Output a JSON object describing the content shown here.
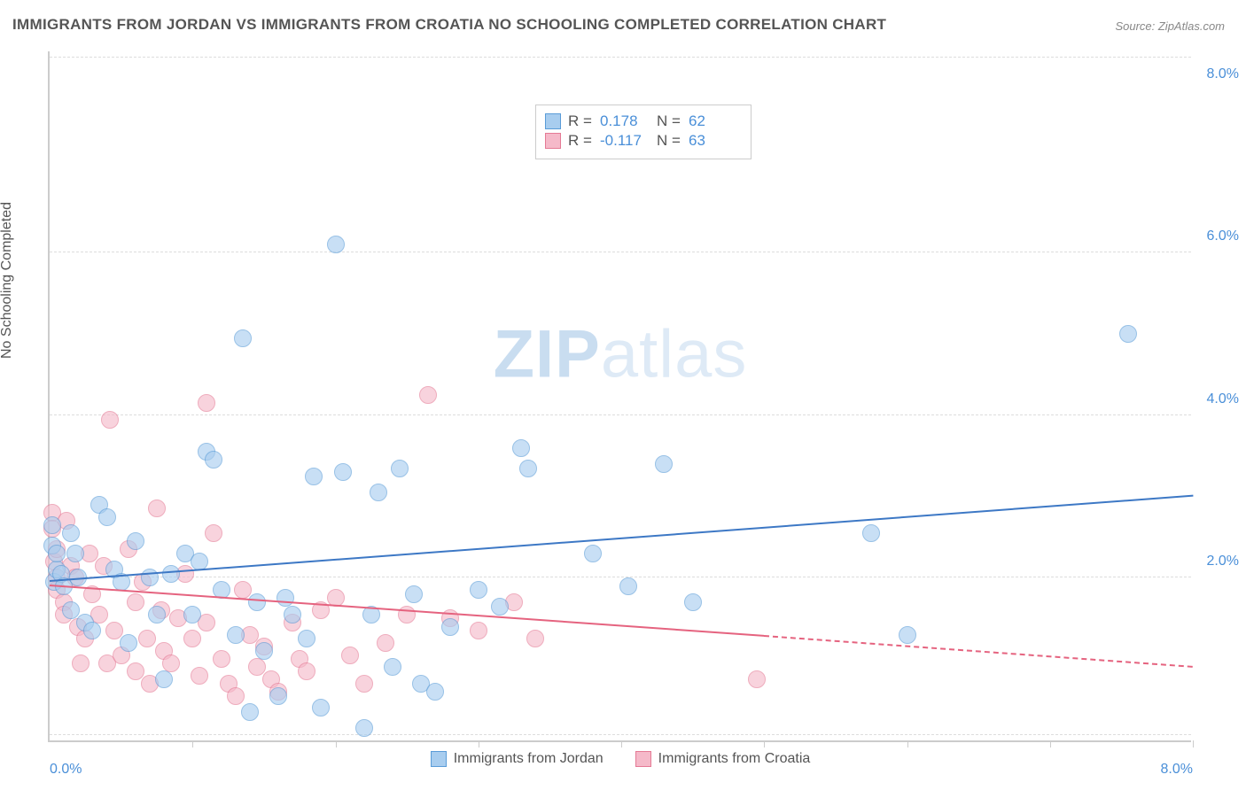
{
  "title": "IMMIGRANTS FROM JORDAN VS IMMIGRANTS FROM CROATIA NO SCHOOLING COMPLETED CORRELATION CHART",
  "source": "Source: ZipAtlas.com",
  "ylabel": "No Schooling Completed",
  "watermark_bold": "ZIP",
  "watermark_rest": "atlas",
  "axis": {
    "xlim": [
      0,
      8
    ],
    "ylim": [
      0,
      8.5
    ],
    "xlabel_left": "0.0%",
    "xlabel_right": "8.0%",
    "yticks": [
      {
        "v": 2.0,
        "label": "2.0%"
      },
      {
        "v": 4.0,
        "label": "4.0%"
      },
      {
        "v": 6.0,
        "label": "6.0%"
      },
      {
        "v": 8.0,
        "label": "8.0%"
      }
    ],
    "grid_y": [
      0.07,
      2.0,
      4.0,
      6.0,
      8.4
    ],
    "xticks": [
      1.0,
      2.0,
      3.0,
      4.0,
      5.0,
      6.0,
      7.0,
      8.0
    ],
    "grid_color": "#dddddd",
    "tick_label_color": "#4a8fd8"
  },
  "series": {
    "jordan": {
      "label": "Immigrants from Jordan",
      "fill": "#a8cdef",
      "stroke": "#5a9cd8",
      "line_color": "#3d78c5",
      "opacity": 0.62,
      "r": 0.178,
      "n": 62,
      "trend": {
        "x0": 0.0,
        "y0": 1.95,
        "x1": 8.0,
        "y1": 3.0
      },
      "points": [
        [
          0.02,
          2.65
        ],
        [
          0.02,
          2.4
        ],
        [
          0.03,
          1.95
        ],
        [
          0.05,
          2.1
        ],
        [
          0.05,
          2.3
        ],
        [
          0.08,
          2.05
        ],
        [
          0.1,
          1.9
        ],
        [
          0.15,
          1.6
        ],
        [
          0.18,
          2.3
        ],
        [
          0.2,
          2.0
        ],
        [
          0.25,
          1.45
        ],
        [
          0.35,
          2.9
        ],
        [
          0.4,
          2.75
        ],
        [
          0.45,
          2.1
        ],
        [
          0.5,
          1.95
        ],
        [
          0.55,
          1.2
        ],
        [
          0.6,
          2.45
        ],
        [
          0.7,
          2.0
        ],
        [
          0.75,
          1.55
        ],
        [
          0.8,
          0.75
        ],
        [
          0.85,
          2.05
        ],
        [
          0.95,
          2.3
        ],
        [
          1.0,
          1.55
        ],
        [
          1.05,
          2.2
        ],
        [
          1.1,
          3.55
        ],
        [
          1.15,
          3.45
        ],
        [
          1.2,
          1.85
        ],
        [
          1.3,
          1.3
        ],
        [
          1.35,
          4.95
        ],
        [
          1.4,
          0.35
        ],
        [
          1.45,
          1.7
        ],
        [
          1.5,
          1.1
        ],
        [
          1.6,
          0.55
        ],
        [
          1.65,
          1.75
        ],
        [
          1.7,
          1.55
        ],
        [
          1.8,
          1.25
        ],
        [
          1.85,
          3.25
        ],
        [
          1.9,
          0.4
        ],
        [
          2.0,
          6.1
        ],
        [
          2.05,
          3.3
        ],
        [
          2.2,
          0.15
        ],
        [
          2.25,
          1.55
        ],
        [
          2.3,
          3.05
        ],
        [
          2.4,
          0.9
        ],
        [
          2.45,
          3.35
        ],
        [
          2.55,
          1.8
        ],
        [
          2.6,
          0.7
        ],
        [
          2.7,
          0.6
        ],
        [
          2.8,
          1.4
        ],
        [
          3.0,
          1.85
        ],
        [
          3.15,
          1.65
        ],
        [
          3.3,
          3.6
        ],
        [
          3.35,
          3.35
        ],
        [
          3.8,
          2.3
        ],
        [
          4.05,
          1.9
        ],
        [
          4.3,
          3.4
        ],
        [
          4.5,
          1.7
        ],
        [
          5.75,
          2.55
        ],
        [
          6.0,
          1.3
        ],
        [
          7.55,
          5.0
        ],
        [
          0.15,
          2.55
        ],
        [
          0.3,
          1.35
        ]
      ]
    },
    "croatia": {
      "label": "Immigrants from Croatia",
      "fill": "#f5b9c9",
      "stroke": "#e57a95",
      "line_color": "#e5637f",
      "opacity": 0.62,
      "r": -0.117,
      "n": 63,
      "trend_solid": {
        "x0": 0.0,
        "y0": 1.9,
        "x1": 5.0,
        "y1": 1.28
      },
      "trend_dash": {
        "x0": 5.0,
        "y0": 1.28,
        "x1": 8.0,
        "y1": 0.9
      },
      "points": [
        [
          0.02,
          2.8
        ],
        [
          0.02,
          2.6
        ],
        [
          0.03,
          2.2
        ],
        [
          0.05,
          2.35
        ],
        [
          0.05,
          2.0
        ],
        [
          0.05,
          1.85
        ],
        [
          0.1,
          1.7
        ],
        [
          0.1,
          1.55
        ],
        [
          0.15,
          2.15
        ],
        [
          0.18,
          2.0
        ],
        [
          0.2,
          1.4
        ],
        [
          0.25,
          1.25
        ],
        [
          0.28,
          2.3
        ],
        [
          0.3,
          1.8
        ],
        [
          0.35,
          1.55
        ],
        [
          0.38,
          2.15
        ],
        [
          0.4,
          0.95
        ],
        [
          0.42,
          3.95
        ],
        [
          0.45,
          1.35
        ],
        [
          0.5,
          1.05
        ],
        [
          0.55,
          2.35
        ],
        [
          0.6,
          0.85
        ],
        [
          0.65,
          1.95
        ],
        [
          0.68,
          1.25
        ],
        [
          0.7,
          0.7
        ],
        [
          0.75,
          2.85
        ],
        [
          0.78,
          1.6
        ],
        [
          0.8,
          1.1
        ],
        [
          0.85,
          0.95
        ],
        [
          0.9,
          1.5
        ],
        [
          0.95,
          2.05
        ],
        [
          1.0,
          1.25
        ],
        [
          1.05,
          0.8
        ],
        [
          1.1,
          1.45
        ],
        [
          1.1,
          4.15
        ],
        [
          1.15,
          2.55
        ],
        [
          1.2,
          1.0
        ],
        [
          1.25,
          0.7
        ],
        [
          1.3,
          0.55
        ],
        [
          1.35,
          1.85
        ],
        [
          1.4,
          1.3
        ],
        [
          1.45,
          0.9
        ],
        [
          1.5,
          1.15
        ],
        [
          1.55,
          0.75
        ],
        [
          1.6,
          0.6
        ],
        [
          1.7,
          1.45
        ],
        [
          1.75,
          1.0
        ],
        [
          1.8,
          0.85
        ],
        [
          1.9,
          1.6
        ],
        [
          2.0,
          1.75
        ],
        [
          2.1,
          1.05
        ],
        [
          2.2,
          0.7
        ],
        [
          2.35,
          1.2
        ],
        [
          2.5,
          1.55
        ],
        [
          2.65,
          4.25
        ],
        [
          2.8,
          1.5
        ],
        [
          3.0,
          1.35
        ],
        [
          3.25,
          1.7
        ],
        [
          3.4,
          1.25
        ],
        [
          4.95,
          0.75
        ],
        [
          0.12,
          2.7
        ],
        [
          0.22,
          0.95
        ],
        [
          0.6,
          1.7
        ]
      ]
    }
  },
  "stats_legend": {
    "r_label": "R =",
    "n_label": "N ="
  },
  "marker_radius": 10
}
